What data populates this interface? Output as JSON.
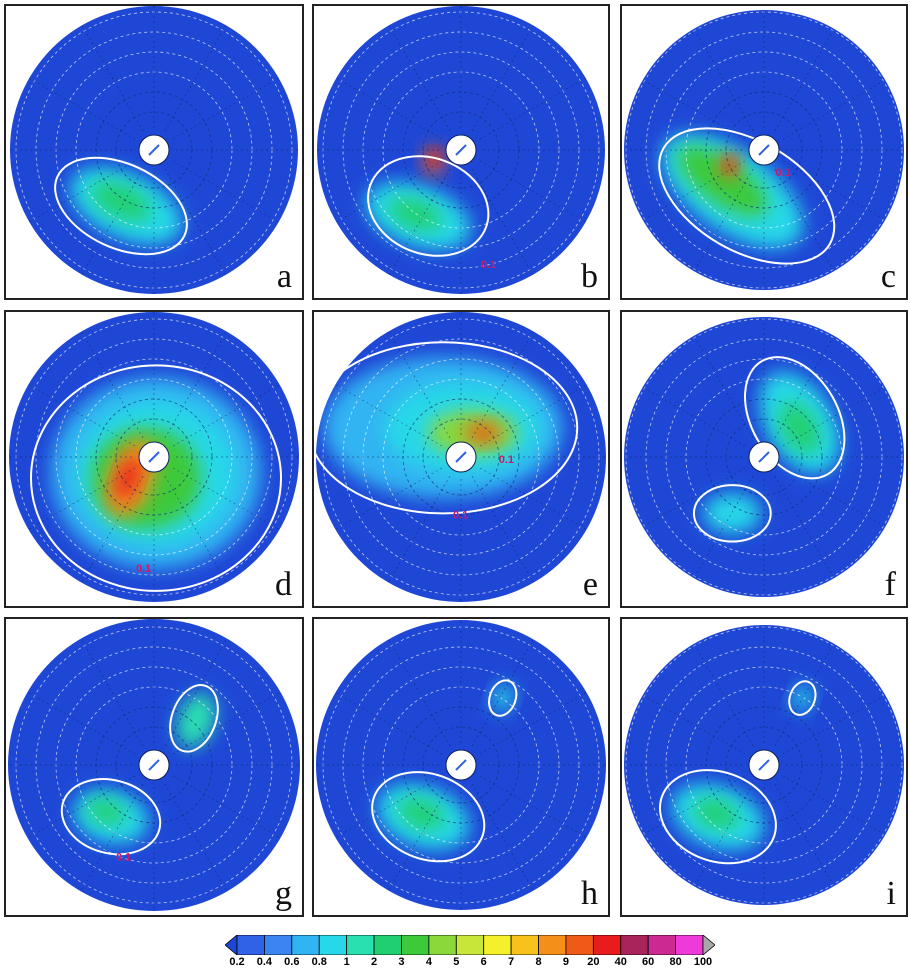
{
  "panels": [
    {
      "label": "a"
    },
    {
      "label": "b"
    },
    {
      "label": "c"
    },
    {
      "label": "d"
    },
    {
      "label": "e"
    },
    {
      "label": "f"
    },
    {
      "label": "g"
    },
    {
      "label": "h"
    },
    {
      "label": "i"
    }
  ],
  "contour_label": "0.1",
  "colors": {
    "background": "#1f47d6",
    "contour": "#ffffff",
    "contour_label": "#cc1a6a",
    "grid": "#ffffff"
  },
  "chart_data": {
    "type": "heatmap",
    "projection": "polar",
    "colorbar": {
      "ticks": [
        "0.2",
        "0.4",
        "0.6",
        "0.8",
        "1",
        "2",
        "3",
        "4",
        "5",
        "6",
        "7",
        "8",
        "9",
        "20",
        "40",
        "60",
        "80",
        "100"
      ],
      "colors": [
        "#1f47d6",
        "#2f62e6",
        "#3b85f0",
        "#30b4f2",
        "#27d8e8",
        "#29e0b0",
        "#20d070",
        "#3ec93a",
        "#8ad83a",
        "#c8e63a",
        "#f4f02a",
        "#f7c21c",
        "#f4901a",
        "#ef5a17",
        "#e81c1c",
        "#a8245a",
        "#cc2a92",
        "#ee3ad8",
        "#a8a8a8"
      ]
    }
  }
}
